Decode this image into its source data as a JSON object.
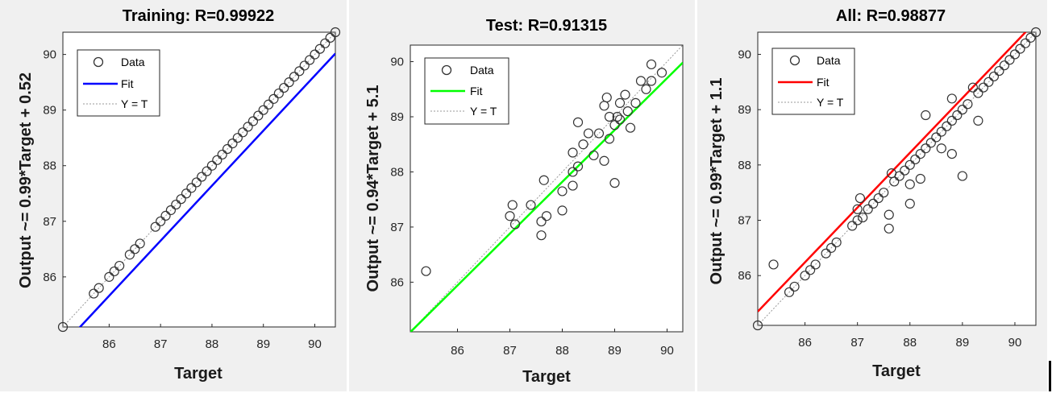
{
  "panels": [
    {
      "title": "Training: R=0.99922",
      "xlabel": "Target",
      "ylabel": "Output ~= 0.99*Target + 0.52",
      "fit_color": "#0000ff",
      "legend": {
        "data": "Data",
        "fit": "Fit",
        "yt": "Y = T"
      },
      "x_ticks": [
        "86",
        "87",
        "88",
        "89",
        "90"
      ],
      "y_ticks": [
        "86",
        "87",
        "88",
        "89",
        "90"
      ]
    },
    {
      "title": "Test: R=0.91315",
      "xlabel": "Target",
      "ylabel": "Output ~= 0.94*Target + 5.1",
      "fit_color": "#00ff00",
      "legend": {
        "data": "Data",
        "fit": "Fit",
        "yt": "Y = T"
      },
      "x_ticks": [
        "86",
        "87",
        "88",
        "89",
        "90"
      ],
      "y_ticks": [
        "86",
        "87",
        "88",
        "89",
        "90"
      ]
    },
    {
      "title": "All: R=0.98877",
      "xlabel": "Target",
      "ylabel": "Output ~= 0.99*Target + 1.1",
      "fit_color": "#ff0000",
      "legend": {
        "data": "Data",
        "fit": "Fit",
        "yt": "Y = T"
      },
      "x_ticks": [
        "86",
        "87",
        "88",
        "89",
        "90"
      ],
      "y_ticks": [
        "86",
        "87",
        "88",
        "89",
        "90"
      ]
    }
  ],
  "chart_data": [
    {
      "type": "scatter",
      "title": "Training: R=0.99922",
      "xlabel": "Target",
      "ylabel": "Output ~= 0.99*Target + 0.52",
      "xlim": [
        85.1,
        90.4
      ],
      "ylim": [
        85.1,
        90.4
      ],
      "grid": false,
      "legend_position": "top-left",
      "fit": {
        "slope": 0.99,
        "intercept": 0.52,
        "color": "#0000ff"
      },
      "series": [
        {
          "name": "Data",
          "points": [
            [
              85.1,
              85.1
            ],
            [
              85.7,
              85.7
            ],
            [
              85.8,
              85.8
            ],
            [
              86.0,
              86.0
            ],
            [
              86.1,
              86.1
            ],
            [
              86.2,
              86.2
            ],
            [
              86.4,
              86.4
            ],
            [
              86.5,
              86.5
            ],
            [
              86.6,
              86.6
            ],
            [
              86.9,
              86.9
            ],
            [
              87.0,
              87.0
            ],
            [
              87.1,
              87.1
            ],
            [
              87.2,
              87.2
            ],
            [
              87.3,
              87.3
            ],
            [
              87.4,
              87.4
            ],
            [
              87.5,
              87.5
            ],
            [
              87.6,
              87.6
            ],
            [
              87.7,
              87.7
            ],
            [
              87.8,
              87.8
            ],
            [
              87.9,
              87.9
            ],
            [
              88.0,
              88.0
            ],
            [
              88.1,
              88.1
            ],
            [
              88.2,
              88.2
            ],
            [
              88.3,
              88.3
            ],
            [
              88.4,
              88.4
            ],
            [
              88.5,
              88.5
            ],
            [
              88.6,
              88.6
            ],
            [
              88.7,
              88.7
            ],
            [
              88.8,
              88.8
            ],
            [
              88.9,
              88.9
            ],
            [
              89.0,
              89.0
            ],
            [
              89.1,
              89.1
            ],
            [
              89.2,
              89.2
            ],
            [
              89.3,
              89.3
            ],
            [
              89.4,
              89.4
            ],
            [
              89.5,
              89.5
            ],
            [
              89.6,
              89.6
            ],
            [
              89.7,
              89.7
            ],
            [
              89.8,
              89.8
            ],
            [
              89.9,
              89.9
            ],
            [
              90.0,
              90.0
            ],
            [
              90.1,
              90.1
            ],
            [
              90.2,
              90.2
            ],
            [
              90.3,
              90.3
            ],
            [
              90.4,
              90.4
            ]
          ]
        }
      ]
    },
    {
      "type": "scatter",
      "title": "Test: R=0.91315",
      "xlabel": "Target",
      "ylabel": "Output ~= 0.94*Target + 5.1",
      "xlim": [
        85.1,
        90.3
      ],
      "ylim": [
        85.1,
        90.3
      ],
      "grid": false,
      "legend_position": "top-left",
      "fit": {
        "slope": 0.94,
        "intercept": 5.1,
        "color": "#00ff00"
      },
      "series": [
        {
          "name": "Data",
          "points": [
            [
              85.4,
              86.2
            ],
            [
              87.0,
              87.2
            ],
            [
              87.05,
              87.4
            ],
            [
              87.1,
              87.05
            ],
            [
              87.4,
              87.4
            ],
            [
              87.6,
              87.1
            ],
            [
              87.6,
              86.85
            ],
            [
              87.65,
              87.85
            ],
            [
              87.7,
              87.2
            ],
            [
              88.0,
              87.65
            ],
            [
              88.0,
              87.3
            ],
            [
              88.2,
              87.75
            ],
            [
              88.2,
              88.35
            ],
            [
              88.3,
              88.9
            ],
            [
              88.3,
              88.1
            ],
            [
              88.4,
              88.5
            ],
            [
              88.2,
              88.0
            ],
            [
              88.5,
              88.7
            ],
            [
              88.6,
              88.3
            ],
            [
              88.7,
              88.7
            ],
            [
              88.8,
              89.2
            ],
            [
              88.8,
              88.2
            ],
            [
              88.9,
              88.6
            ],
            [
              88.9,
              89.0
            ],
            [
              89.0,
              88.85
            ],
            [
              89.0,
              87.8
            ],
            [
              89.05,
              89.0
            ],
            [
              89.1,
              89.25
            ],
            [
              89.1,
              88.95
            ],
            [
              89.2,
              89.4
            ],
            [
              89.25,
              89.1
            ],
            [
              89.3,
              88.8
            ],
            [
              89.4,
              89.25
            ],
            [
              89.5,
              89.65
            ],
            [
              89.6,
              89.5
            ],
            [
              89.7,
              89.65
            ],
            [
              89.7,
              89.95
            ],
            [
              89.9,
              89.8
            ],
            [
              88.85,
              89.35
            ]
          ]
        }
      ]
    },
    {
      "type": "scatter",
      "title": "All: R=0.98877",
      "xlabel": "Target",
      "ylabel": "Output ~= 0.99*Target + 1.1",
      "xlim": [
        85.1,
        90.4
      ],
      "ylim": [
        85.1,
        90.4
      ],
      "grid": false,
      "legend_position": "top-left",
      "fit": {
        "slope": 0.99,
        "intercept": 1.1,
        "color": "#ff0000"
      },
      "series": [
        {
          "name": "Data",
          "points": [
            [
              85.1,
              85.1
            ],
            [
              85.4,
              86.2
            ],
            [
              85.7,
              85.7
            ],
            [
              85.8,
              85.8
            ],
            [
              86.0,
              86.0
            ],
            [
              86.1,
              86.1
            ],
            [
              86.2,
              86.2
            ],
            [
              86.4,
              86.4
            ],
            [
              86.5,
              86.5
            ],
            [
              86.6,
              86.6
            ],
            [
              86.9,
              86.9
            ],
            [
              87.0,
              87.0
            ],
            [
              87.0,
              87.2
            ],
            [
              87.05,
              87.4
            ],
            [
              87.1,
              87.05
            ],
            [
              87.2,
              87.2
            ],
            [
              87.3,
              87.3
            ],
            [
              87.4,
              87.4
            ],
            [
              87.5,
              87.5
            ],
            [
              87.6,
              87.1
            ],
            [
              87.6,
              86.85
            ],
            [
              87.65,
              87.85
            ],
            [
              87.7,
              87.7
            ],
            [
              87.8,
              87.8
            ],
            [
              87.9,
              87.9
            ],
            [
              88.0,
              88.0
            ],
            [
              88.0,
              87.65
            ],
            [
              88.0,
              87.3
            ],
            [
              88.1,
              88.1
            ],
            [
              88.2,
              87.75
            ],
            [
              88.2,
              88.2
            ],
            [
              88.3,
              88.9
            ],
            [
              88.3,
              88.3
            ],
            [
              88.4,
              88.4
            ],
            [
              88.5,
              88.5
            ],
            [
              88.6,
              88.6
            ],
            [
              88.6,
              88.3
            ],
            [
              88.7,
              88.7
            ],
            [
              88.8,
              89.2
            ],
            [
              88.8,
              88.2
            ],
            [
              88.8,
              88.8
            ],
            [
              88.9,
              88.9
            ],
            [
              89.0,
              89.0
            ],
            [
              89.0,
              87.8
            ],
            [
              89.1,
              89.1
            ],
            [
              89.2,
              89.4
            ],
            [
              89.3,
              89.3
            ],
            [
              89.3,
              88.8
            ],
            [
              89.4,
              89.4
            ],
            [
              89.5,
              89.5
            ],
            [
              89.6,
              89.6
            ],
            [
              89.7,
              89.7
            ],
            [
              89.8,
              89.8
            ],
            [
              89.9,
              89.9
            ],
            [
              90.0,
              90.0
            ],
            [
              90.1,
              90.1
            ],
            [
              90.2,
              90.2
            ],
            [
              90.3,
              90.3
            ],
            [
              90.4,
              90.4
            ]
          ]
        }
      ]
    }
  ]
}
